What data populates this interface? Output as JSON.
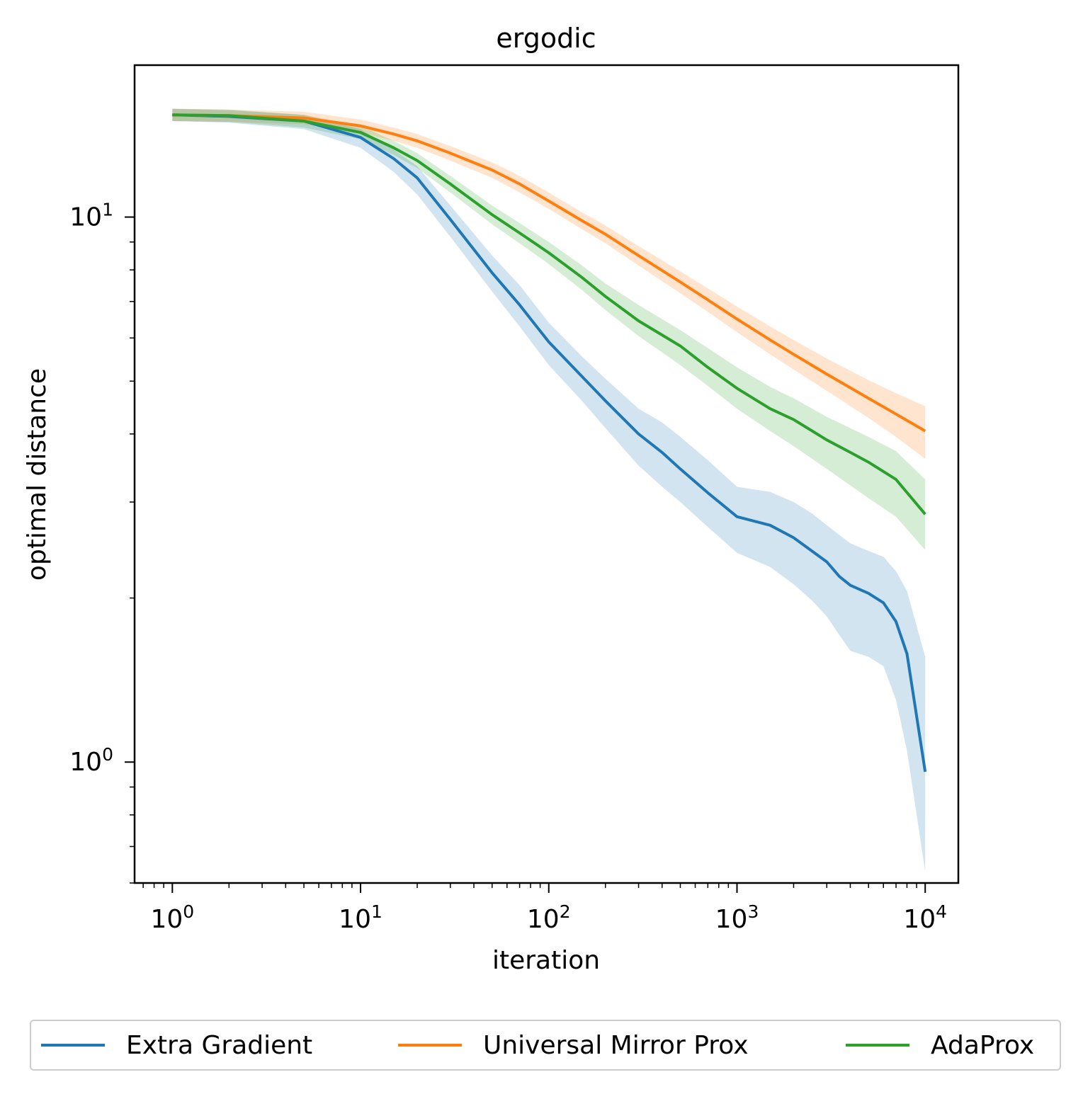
{
  "chart_data": {
    "type": "line",
    "title": "ergodic",
    "xlabel": "iteration",
    "ylabel": "optimal distance",
    "xscale": "log",
    "yscale": "log",
    "xlim": [
      0.63,
      15000
    ],
    "ylim": [
      0.6,
      19
    ],
    "x_ticks": [
      {
        "value": 1,
        "base": "10",
        "exp": "0"
      },
      {
        "value": 10,
        "base": "10",
        "exp": "1"
      },
      {
        "value": 100,
        "base": "10",
        "exp": "2"
      },
      {
        "value": 1000,
        "base": "10",
        "exp": "3"
      },
      {
        "value": 10000,
        "base": "10",
        "exp": "4"
      }
    ],
    "y_ticks": [
      {
        "value": 1,
        "base": "10",
        "exp": "0"
      },
      {
        "value": 10,
        "base": "10",
        "exp": "1"
      }
    ],
    "grid": false,
    "legend_position": "bottom",
    "series": [
      {
        "name": "Extra Gradient",
        "color": "#1f77b4",
        "x": [
          1,
          2,
          5,
          10,
          15,
          20,
          30,
          50,
          70,
          100,
          150,
          200,
          300,
          400,
          500,
          700,
          1000,
          1500,
          2000,
          2500,
          3000,
          3500,
          4000,
          5000,
          6000,
          7000,
          8000,
          10000
        ],
        "y": [
          15.4,
          15.3,
          15.0,
          14.0,
          12.8,
          11.8,
          9.9,
          7.9,
          6.9,
          5.9,
          5.1,
          4.6,
          4.0,
          3.7,
          3.45,
          3.12,
          2.82,
          2.72,
          2.58,
          2.44,
          2.33,
          2.19,
          2.11,
          2.04,
          1.96,
          1.81,
          1.58,
          0.96
        ],
        "y_lower": [
          15.0,
          14.9,
          14.5,
          13.4,
          12.1,
          11.0,
          9.2,
          7.3,
          6.3,
          5.35,
          4.6,
          4.1,
          3.5,
          3.2,
          3.0,
          2.7,
          2.42,
          2.28,
          2.12,
          1.98,
          1.85,
          1.71,
          1.6,
          1.56,
          1.5,
          1.3,
          1.05,
          0.63
        ],
        "y_upper": [
          15.8,
          15.7,
          15.4,
          14.5,
          13.3,
          12.4,
          10.5,
          8.5,
          7.5,
          6.4,
          5.55,
          5.05,
          4.45,
          4.2,
          3.95,
          3.58,
          3.2,
          3.13,
          3.0,
          2.86,
          2.72,
          2.61,
          2.52,
          2.44,
          2.38,
          2.24,
          2.06,
          1.56
        ]
      },
      {
        "name": "Universal Mirror Prox",
        "color": "#ff7f0e",
        "x": [
          1,
          2,
          5,
          10,
          15,
          20,
          30,
          50,
          70,
          100,
          150,
          200,
          300,
          500,
          700,
          1000,
          1500,
          2000,
          3000,
          5000,
          7000,
          10000
        ],
        "y": [
          15.4,
          15.35,
          15.2,
          14.7,
          14.2,
          13.8,
          13.1,
          12.2,
          11.5,
          10.7,
          9.85,
          9.3,
          8.5,
          7.6,
          7.05,
          6.5,
          5.95,
          5.6,
          5.15,
          4.65,
          4.35,
          4.05
        ],
        "y_lower": [
          15.0,
          14.95,
          14.8,
          14.3,
          13.8,
          13.4,
          12.7,
          11.8,
          11.1,
          10.35,
          9.5,
          8.95,
          8.15,
          7.25,
          6.7,
          6.15,
          5.6,
          5.25,
          4.8,
          4.28,
          3.95,
          3.6
        ],
        "y_upper": [
          15.8,
          15.75,
          15.6,
          15.1,
          14.6,
          14.2,
          13.5,
          12.6,
          11.9,
          11.1,
          10.2,
          9.65,
          8.85,
          7.95,
          7.4,
          6.85,
          6.3,
          5.95,
          5.5,
          5.02,
          4.75,
          4.5
        ]
      },
      {
        "name": "AdaProx",
        "color": "#2ca02c",
        "x": [
          1,
          2,
          5,
          10,
          15,
          20,
          30,
          50,
          70,
          100,
          150,
          200,
          300,
          500,
          700,
          1000,
          1500,
          2000,
          3000,
          4000,
          5000,
          7000,
          10000
        ],
        "y": [
          15.4,
          15.35,
          15.0,
          14.3,
          13.4,
          12.7,
          11.5,
          10.1,
          9.35,
          8.6,
          7.75,
          7.15,
          6.45,
          5.8,
          5.3,
          4.85,
          4.45,
          4.25,
          3.9,
          3.7,
          3.55,
          3.3,
          2.85
        ],
        "y_lower": [
          15.0,
          14.95,
          14.6,
          13.9,
          13.0,
          12.3,
          11.1,
          9.7,
          8.95,
          8.2,
          7.35,
          6.75,
          6.05,
          5.35,
          4.9,
          4.45,
          4.05,
          3.8,
          3.45,
          3.22,
          3.05,
          2.82,
          2.45
        ],
        "y_upper": [
          15.8,
          15.75,
          15.4,
          14.7,
          13.8,
          13.1,
          11.9,
          10.5,
          9.75,
          9.0,
          8.15,
          7.55,
          6.9,
          6.2,
          5.75,
          5.3,
          4.88,
          4.65,
          4.3,
          4.1,
          3.95,
          3.72,
          3.3
        ]
      }
    ]
  }
}
